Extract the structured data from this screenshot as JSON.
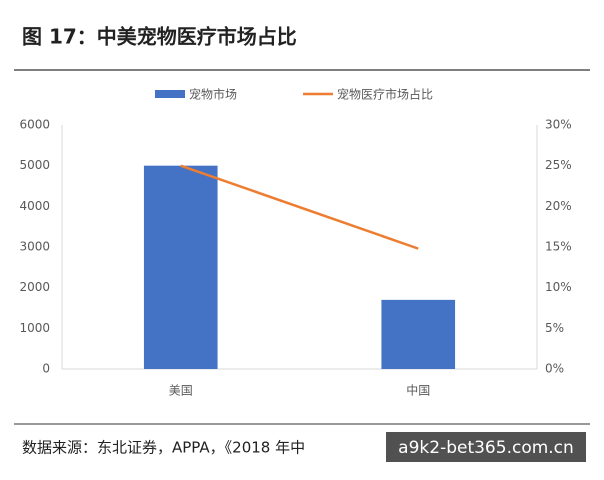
{
  "chart_data": {
    "type": "combo",
    "title": "图 17：中美宠物医疗市场占比",
    "categories": [
      "美国",
      "中国"
    ],
    "series": [
      {
        "name": "宠物市场",
        "type": "bar",
        "color": "#4472c4",
        "values": [
          5000,
          1700
        ]
      },
      {
        "name": "宠物医疗市场占比",
        "type": "line",
        "color": "#ed7d31",
        "axis": "y2",
        "values": [
          25,
          14.8
        ]
      }
    ],
    "ylim": [
      0,
      6000
    ],
    "yticks": [
      0,
      1000,
      2000,
      3000,
      4000,
      5000,
      6000
    ],
    "y2lim": [
      0,
      30
    ],
    "y2ticks": [
      {
        "value": 0,
        "label": "0%"
      },
      {
        "value": 5,
        "label": "5%"
      },
      {
        "value": 10,
        "label": "10%"
      },
      {
        "value": 15,
        "label": "15%"
      },
      {
        "value": 20,
        "label": "20%"
      },
      {
        "value": 25,
        "label": "25%"
      },
      {
        "value": 30,
        "label": "30%"
      }
    ],
    "legend": "top",
    "source": "数据来源：东北证券，APPA，《2018 年中",
    "watermark": "a9k2-bet365.com.cn"
  }
}
